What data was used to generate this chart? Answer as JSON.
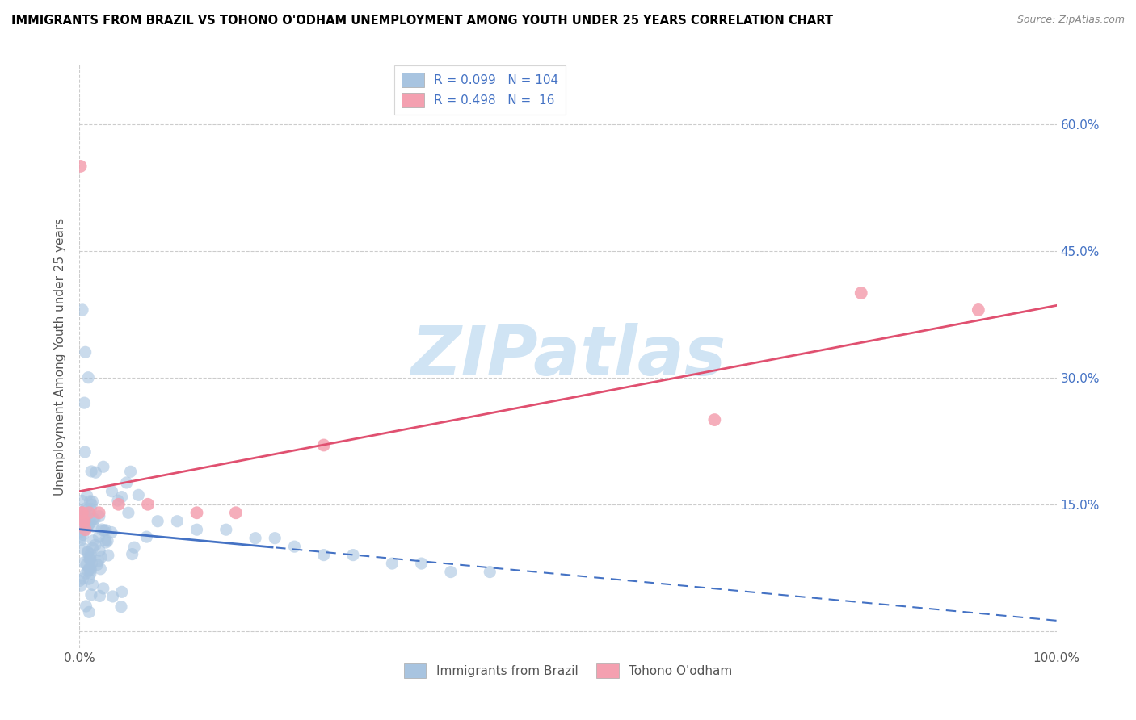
{
  "title": "IMMIGRANTS FROM BRAZIL VS TOHONO O'ODHAM UNEMPLOYMENT AMONG YOUTH UNDER 25 YEARS CORRELATION CHART",
  "source": "Source: ZipAtlas.com",
  "ylabel": "Unemployment Among Youth under 25 years",
  "xlim": [
    0,
    1.0
  ],
  "ylim": [
    -0.02,
    0.67
  ],
  "ytick_positions": [
    0.15,
    0.3,
    0.45,
    0.6
  ],
  "ytick_labels": [
    "15.0%",
    "30.0%",
    "45.0%",
    "60.0%"
  ],
  "legend_label1": "Immigrants from Brazil",
  "legend_label2": "Tohono O'odham",
  "r1": 0.099,
  "n1": 104,
  "r2": 0.498,
  "n2": 16,
  "color_blue": "#a8c4e0",
  "color_blue_line": "#4472c4",
  "color_pink": "#f4a0b0",
  "color_pink_line": "#e05070",
  "watermark_color": "#d0e4f4",
  "background_color": "#ffffff",
  "grid_color": "#cccccc",
  "title_color": "#000000",
  "label_color": "#555555",
  "right_tick_color": "#4472c4",
  "legend_text_color": "#4472c4"
}
